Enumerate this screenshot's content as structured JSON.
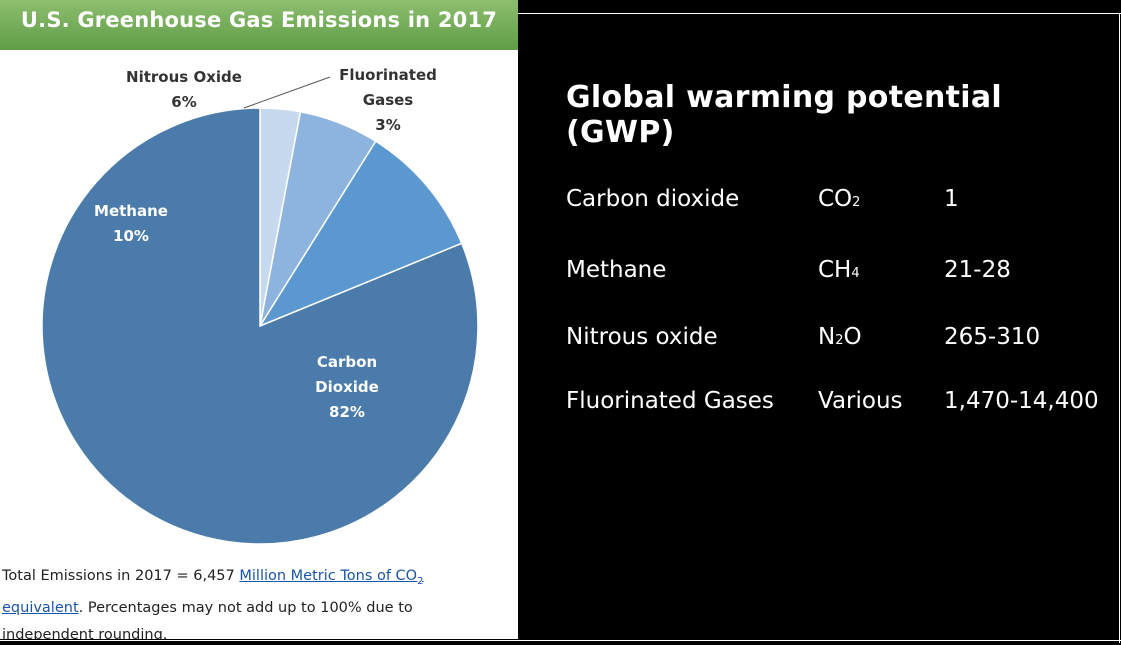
{
  "chart_data": {
    "type": "pie",
    "title": "U.S. Greenhouse Gas Emissions in 2017",
    "slices": [
      {
        "label": "Fluorinated Gases",
        "label_lines": [
          "Fluorinated",
          "Gases"
        ],
        "value": 3,
        "value_text": "3%",
        "color": "#c6d9ee"
      },
      {
        "label": "Nitrous Oxide",
        "label_lines": [
          "Nitrous Oxide"
        ],
        "value": 6,
        "value_text": "6%",
        "color": "#8db4de"
      },
      {
        "label": "Methane",
        "label_lines": [
          "Methane"
        ],
        "value": 10,
        "value_text": "10%",
        "color": "#5b98d0"
      },
      {
        "label": "Carbon Dioxide",
        "label_lines": [
          "Carbon",
          "Dioxide"
        ],
        "value": 82,
        "value_text": "82%",
        "color": "#4a7baa"
      }
    ],
    "footnote": {
      "prefix": "Total Emissions in 2017 = 6,457",
      "link_text_line1": "Million Metric Tons of CO",
      "link_sub": "2",
      "link_text_line2": "equivalent",
      "suffix_line2": ". Percentages may not add up to 100% due to",
      "line3": "independent rounding."
    }
  },
  "gwp_table": {
    "title": "Global warming potential (GWP)",
    "rows": [
      {
        "gas": "Carbon dioxide",
        "formula_parts": [
          "CO",
          "2"
        ],
        "value": "1"
      },
      {
        "gas": "Methane",
        "formula_parts": [
          "CH",
          "4"
        ],
        "value": "21-28"
      },
      {
        "gas": "Nitrous oxide",
        "formula_parts": [
          "N",
          "2",
          "O"
        ],
        "value": "265-310"
      },
      {
        "gas": "Fluorinated Gases",
        "formula_parts": [
          "Various"
        ],
        "value": "1,470-14,400"
      }
    ]
  }
}
